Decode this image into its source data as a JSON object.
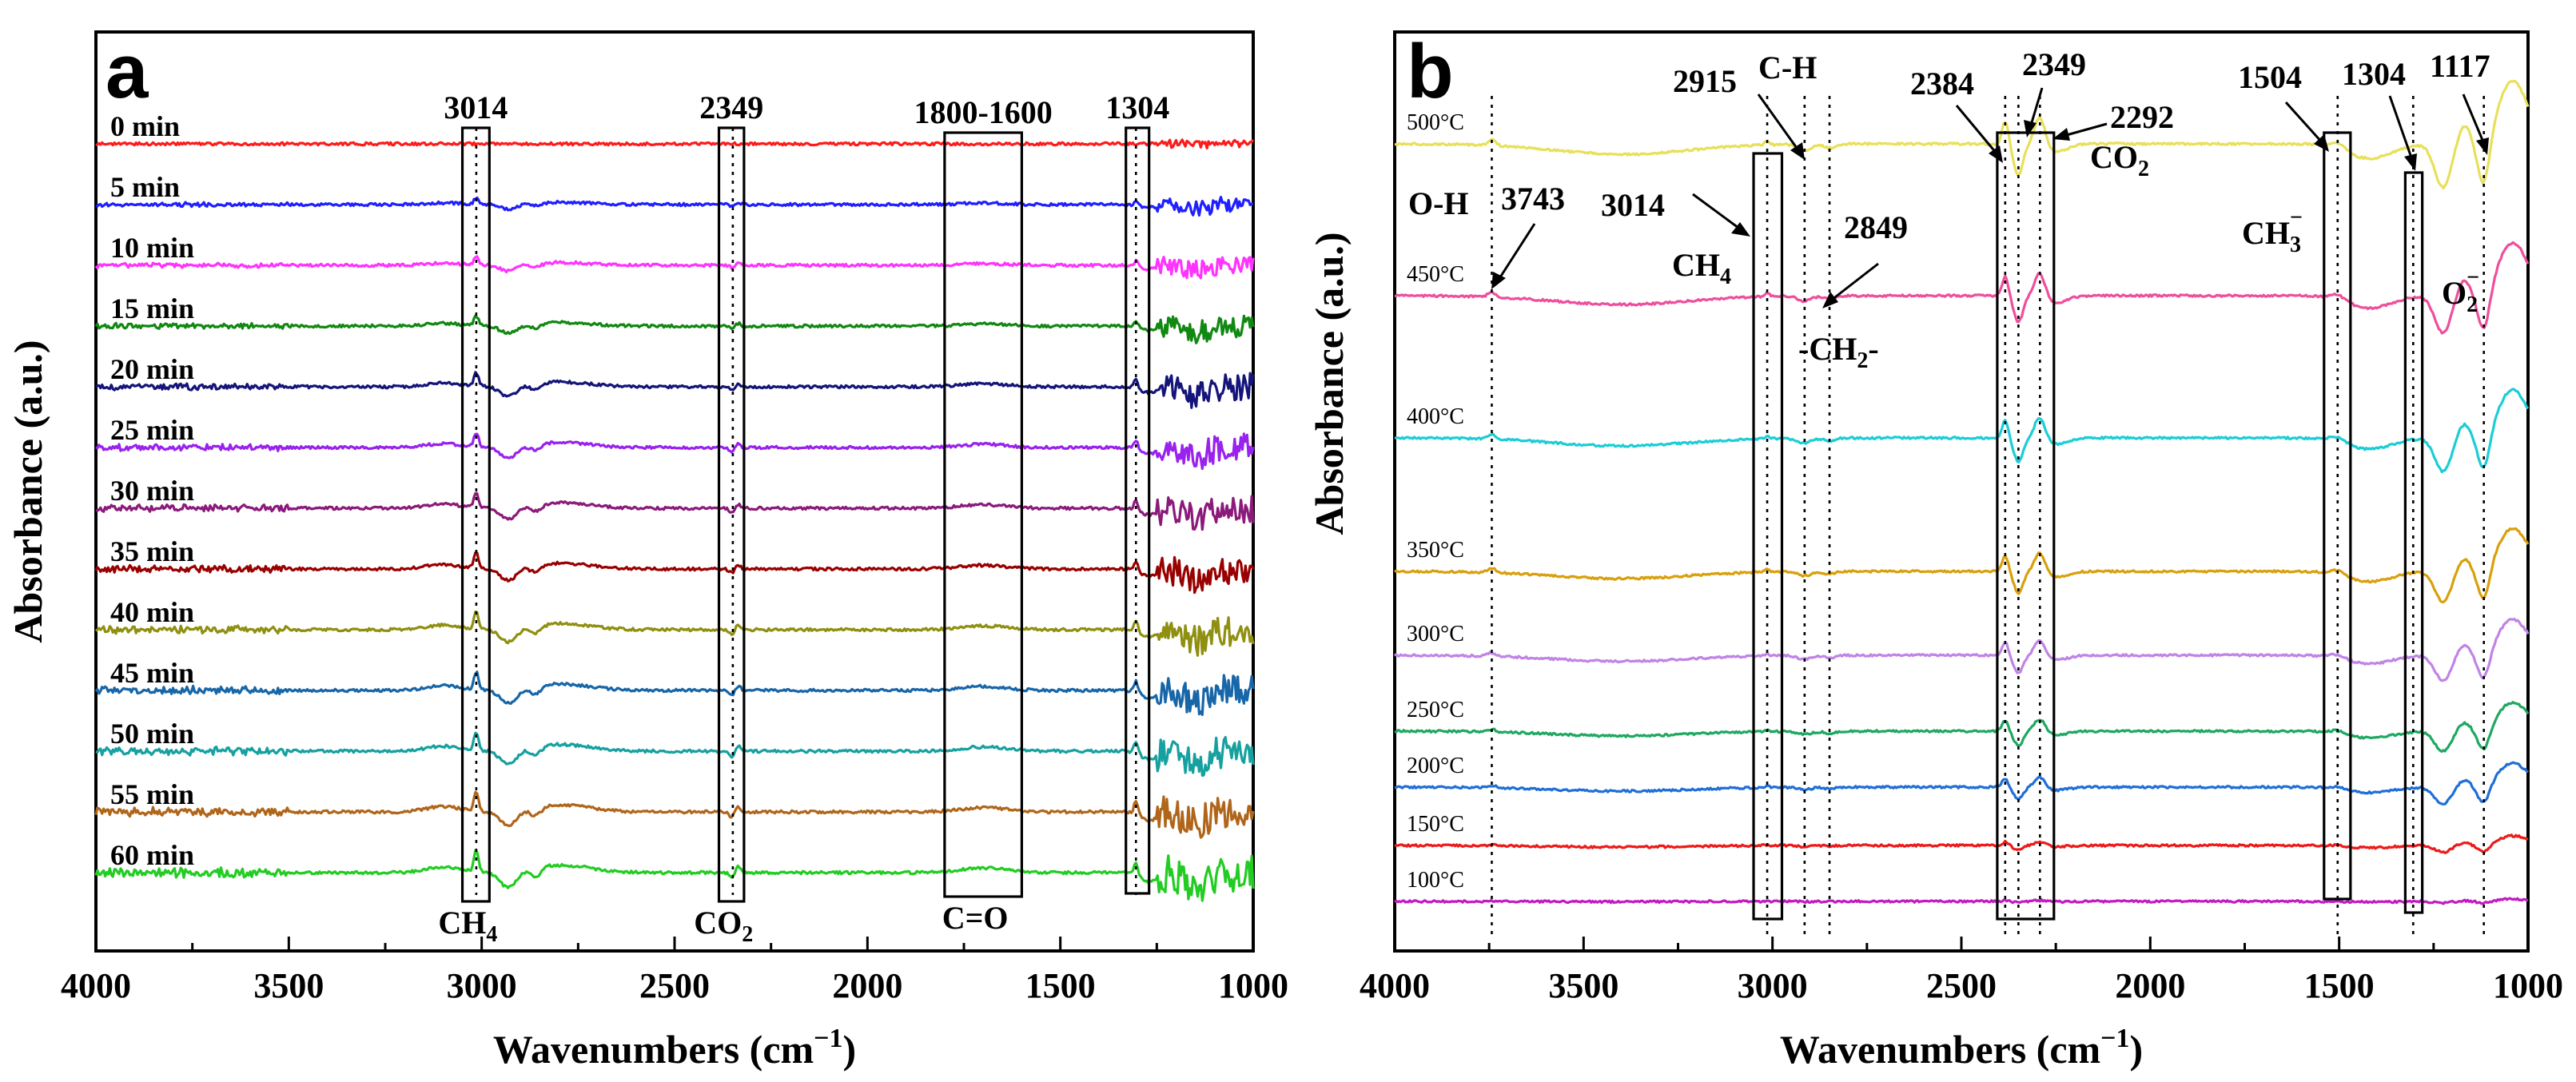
{
  "chart_data": [
    {
      "panel": "a",
      "type": "line",
      "xlabel": "Wavenumbers (cm",
      "xlabel_sup": "−1",
      "xlabel_close": ")",
      "ylabel": "Absorbance (a.u.)",
      "xlim": [
        4000,
        1000
      ],
      "xticks": [
        4000,
        3500,
        3000,
        2500,
        2000,
        1500,
        1000
      ],
      "series": [
        {
          "name": "0 min",
          "color": "#ff1a1a",
          "intensity": 0.0
        },
        {
          "name": "5 min",
          "color": "#1f1fff",
          "intensity": 0.35
        },
        {
          "name": "10 min",
          "color": "#ff33ff",
          "intensity": 0.45
        },
        {
          "name": "15 min",
          "color": "#118811",
          "intensity": 0.55
        },
        {
          "name": "20 min",
          "color": "#14147a",
          "intensity": 0.75
        },
        {
          "name": "25 min",
          "color": "#9922ee",
          "intensity": 0.8
        },
        {
          "name": "30 min",
          "color": "#8b1a7a",
          "intensity": 0.85
        },
        {
          "name": "35 min",
          "color": "#990000",
          "intensity": 0.9
        },
        {
          "name": "40 min",
          "color": "#8f8f10",
          "intensity": 0.95
        },
        {
          "name": "45 min",
          "color": "#1766a8",
          "intensity": 1.0
        },
        {
          "name": "50 min",
          "color": "#17a0a0",
          "intensity": 1.05
        },
        {
          "name": "55 min",
          "color": "#b0661a",
          "intensity": 1.1
        },
        {
          "name": "60 min",
          "color": "#22cc22",
          "intensity": 1.2
        }
      ],
      "boxes": [
        {
          "label": "3014",
          "from": 3050,
          "to": 2980,
          "bottom": "CH",
          "bottom_sub": "4"
        },
        {
          "label": "2349",
          "from": 2385,
          "to": 2320,
          "bottom": "CO",
          "bottom_sub": "2"
        },
        {
          "label": "1800-1600",
          "from": 1800,
          "to": 1600,
          "bottom": "C=O",
          "bottom_sub": ""
        },
        {
          "label": "1304",
          "from": 1330,
          "to": 1270,
          "bottom": "",
          "bottom_sub": ""
        }
      ],
      "dotted_lines": [
        3014,
        2349,
        1304
      ]
    },
    {
      "panel": "b",
      "type": "line",
      "xlabel": "Wavenumbers (cm",
      "xlabel_sup": "−1",
      "xlabel_close": ")",
      "ylabel": "Absorbance (a.u.)",
      "xlim": [
        4000,
        1000
      ],
      "xticks": [
        4000,
        3500,
        3000,
        2500,
        2000,
        1500,
        1000
      ],
      "series": [
        {
          "name": "500°C",
          "color": "#e8e05a",
          "intensity": 1.3
        },
        {
          "name": "450°C",
          "color": "#ee4f9c",
          "intensity": 1.1
        },
        {
          "name": "400°C",
          "color": "#1ccdd6",
          "intensity": 1.0
        },
        {
          "name": "350°C",
          "color": "#d9a00d",
          "intensity": 0.9
        },
        {
          "name": "300°C",
          "color": "#c084e6",
          "intensity": 0.75
        },
        {
          "name": "250°C",
          "color": "#1fa862",
          "intensity": 0.6
        },
        {
          "name": "200°C",
          "color": "#1f6fd8",
          "intensity": 0.5
        },
        {
          "name": "150°C",
          "color": "#ee1a1a",
          "intensity": 0.2
        },
        {
          "name": "100°C",
          "color": "#c21ac2",
          "intensity": 0.05
        }
      ],
      "boxes": [
        {
          "label": "3014",
          "from": 3050,
          "to": 2975
        },
        {
          "label": "2349",
          "from": 2405,
          "to": 2255
        },
        {
          "label": "1504",
          "from": 1540,
          "to": 1470
        },
        {
          "label": "1304",
          "from": 1325,
          "to": 1280
        }
      ],
      "dotted_lines": [
        3743,
        3014,
        2915,
        2849,
        2384,
        2349,
        2292,
        1504,
        1304,
        1117
      ],
      "annotations": {
        "oh": "O-H",
        "oh_value": "3743",
        "ch_value": "3014",
        "ch_species": "CH",
        "ch_sub": "4",
        "ch2915": "2915",
        "ch_bond": "C-H",
        "ch2_value": "2849",
        "ch2_species": "-CH",
        "ch2_sub": "2",
        "ch2_end": "-",
        "co2_2384": "2384",
        "co2_2349": "2349",
        "co2_2292": "2292",
        "co2": "CO",
        "co2_sub": "2",
        "co2_color": "#ff0000",
        "ch3_value": "1504",
        "ch3": "CH",
        "ch3_sub": "3",
        "ch3_sup": "−",
        "v1304": "1304",
        "v1117": "1117",
        "o2": "O",
        "o2_sub": "2",
        "o2_sup": "−"
      }
    }
  ]
}
